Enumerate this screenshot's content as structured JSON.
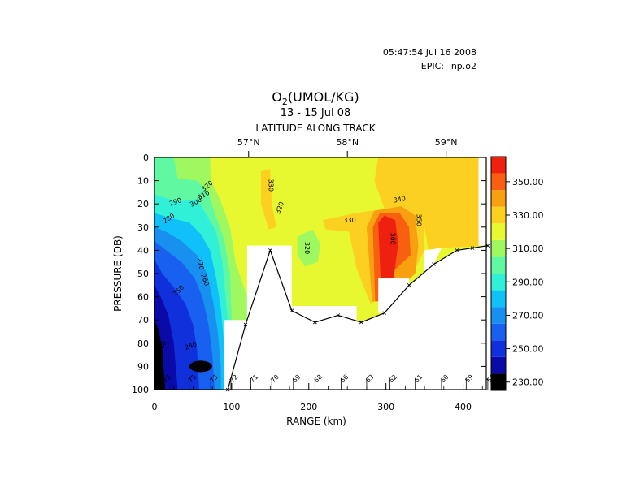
{
  "timestamp": "05:47:54 Jul 16 2008",
  "epic_label": "EPIC:",
  "epic_file": "np.o2",
  "chart_data": {
    "type": "heatmap",
    "title_main": "O",
    "title_sub_digit": "2",
    "title_units": "(UMOL/KG)",
    "subtitle": "13 - 15 Jul 08",
    "top_axis_title": "LATITUDE ALONG TRACK",
    "xlabel": "RANGE (km)",
    "ylabel": "PRESSURE (DB)",
    "xlim": [
      0,
      430
    ],
    "ylim": [
      100,
      0
    ],
    "x_ticks": [
      "0",
      "100",
      "200",
      "300",
      "400"
    ],
    "y_ticks": [
      "0",
      "10",
      "20",
      "30",
      "40",
      "50",
      "60",
      "70",
      "80",
      "90",
      "100"
    ],
    "latitude_ticks": [
      {
        "label": "57°N",
        "range_km": 122
      },
      {
        "label": "58°N",
        "range_km": 250
      },
      {
        "label": "59°N",
        "range_km": 378
      }
    ],
    "colorbar": {
      "levels": [
        230,
        240,
        250,
        260,
        270,
        280,
        290,
        300,
        310,
        320,
        330,
        340,
        350,
        360,
        365
      ],
      "colors": [
        "#000000",
        "#0a0aa8",
        "#1030dc",
        "#1860f0",
        "#1890f0",
        "#10c0f8",
        "#30f0d8",
        "#60f8a0",
        "#a0f860",
        "#e8f830",
        "#fcd020",
        "#f8a010",
        "#f86010",
        "#f02010"
      ],
      "tick_labels": [
        "230.00",
        "250.00",
        "270.00",
        "290.00",
        "310.00",
        "330.00",
        "350.00"
      ]
    },
    "stations": [
      {
        "label": "78",
        "range_km": 12
      },
      {
        "label": "75",
        "range_km": 45
      },
      {
        "label": "73",
        "range_km": 73
      },
      {
        "label": "72",
        "range_km": 99
      },
      {
        "label": "71",
        "range_km": 125
      },
      {
        "label": "70",
        "range_km": 152
      },
      {
        "label": "69",
        "range_km": 180
      },
      {
        "label": "68",
        "range_km": 208
      },
      {
        "label": "66",
        "range_km": 242
      },
      {
        "label": "63",
        "range_km": 275
      },
      {
        "label": "62",
        "range_km": 305
      },
      {
        "label": "61",
        "range_km": 338
      },
      {
        "label": "60",
        "range_km": 372
      },
      {
        "label": "59",
        "range_km": 404
      },
      {
        "label": "58",
        "range_km": 432
      }
    ],
    "bottom_depth_profile": [
      {
        "range_km": 95,
        "pressure_db": 100
      },
      {
        "range_km": 118,
        "pressure_db": 72
      },
      {
        "range_km": 150,
        "pressure_db": 40
      },
      {
        "range_km": 178,
        "pressure_db": 66
      },
      {
        "range_km": 208,
        "pressure_db": 71
      },
      {
        "range_km": 238,
        "pressure_db": 68
      },
      {
        "range_km": 268,
        "pressure_db": 71
      },
      {
        "range_km": 298,
        "pressure_db": 67
      },
      {
        "range_km": 330,
        "pressure_db": 55
      },
      {
        "range_km": 362,
        "pressure_db": 46
      },
      {
        "range_km": 392,
        "pressure_db": 40
      },
      {
        "range_km": 412,
        "pressure_db": 39
      },
      {
        "range_km": 432,
        "pressure_db": 38
      }
    ],
    "contour_labels": [
      "280",
      "290",
      "300",
      "310",
      "320",
      "330",
      "320",
      "330",
      "340",
      "350",
      "360",
      "320",
      "270",
      "260",
      "250",
      "280",
      "240"
    ]
  }
}
